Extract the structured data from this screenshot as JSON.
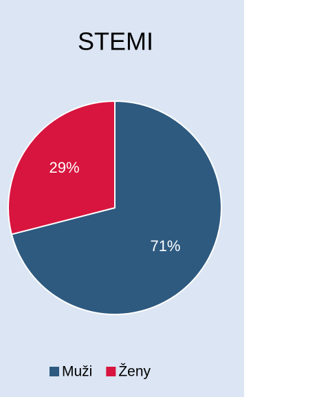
{
  "chart_data": {
    "type": "pie",
    "title": "STEMI",
    "categories": [
      "Muži",
      "Ženy"
    ],
    "values": [
      71,
      29
    ],
    "value_labels": [
      "71%",
      "29%"
    ],
    "colors": [
      "#2e5a80",
      "#d7153f"
    ],
    "legend": "bottom"
  }
}
